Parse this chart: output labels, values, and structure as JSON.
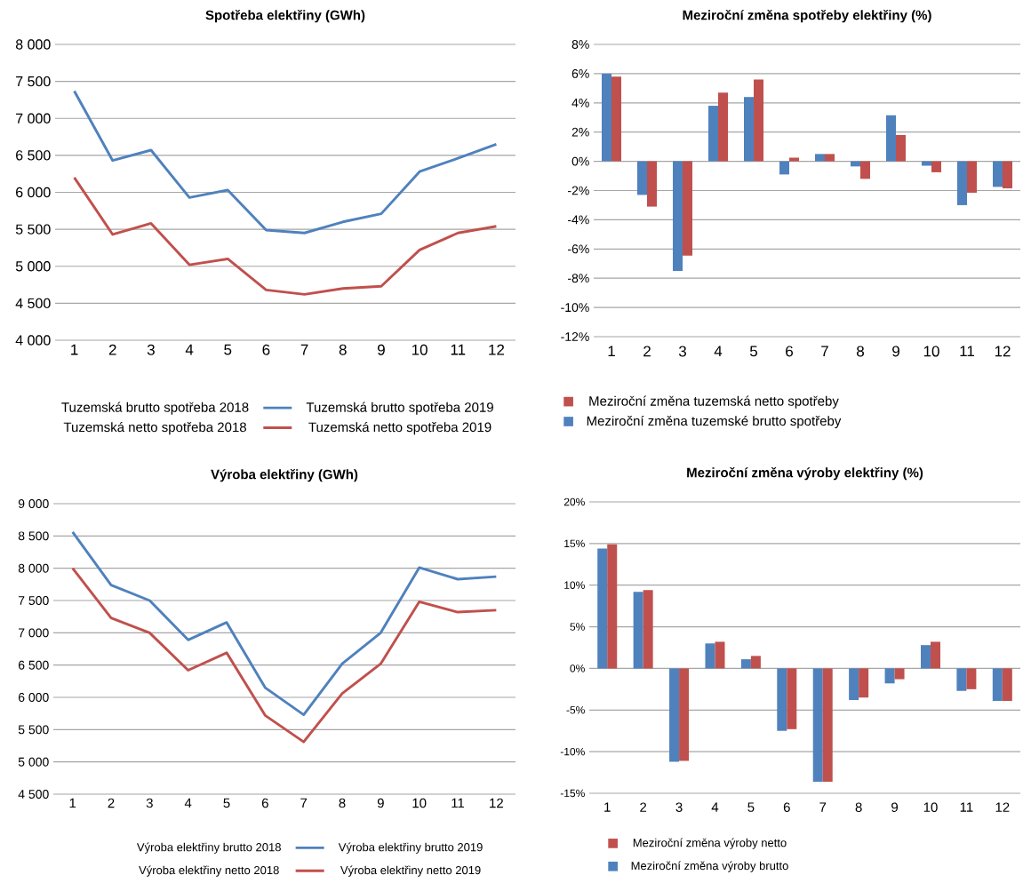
{
  "chart_data": [
    {
      "type": "line",
      "title": "Spotřeba elektřiny (GWh)",
      "categories": [
        "1",
        "2",
        "3",
        "4",
        "5",
        "6",
        "7",
        "8",
        "9",
        "10",
        "11",
        "12"
      ],
      "series": [
        {
          "name": "Tuzemská brutto spotřeba 2019",
          "color": "#4f81bd",
          "values": [
            7370,
            6430,
            6570,
            5930,
            6030,
            5490,
            5450,
            5600,
            5710,
            6280,
            6460,
            6650
          ]
        },
        {
          "name": "Tuzemská netto spotřeba 2019",
          "color": "#c0504d",
          "values": [
            6200,
            5430,
            5580,
            5020,
            5100,
            4680,
            4620,
            4700,
            4730,
            5220,
            5450,
            5540
          ]
        }
      ],
      "ylim": [
        4000,
        8000
      ],
      "yticks": [
        {
          "value": 4000,
          "label": "4 000"
        },
        {
          "value": 4500,
          "label": "4 500"
        },
        {
          "value": 5000,
          "label": "5 000"
        },
        {
          "value": 5500,
          "label": "5 500"
        },
        {
          "value": 6000,
          "label": "6 000"
        },
        {
          "value": 6500,
          "label": "6 500"
        },
        {
          "value": 7000,
          "label": "7 000"
        },
        {
          "value": 7500,
          "label": "7 500"
        },
        {
          "value": 8000,
          "label": "8 000"
        }
      ],
      "grid": "y",
      "legend": "bottom",
      "annotations": [
        "Tuzemská brutto spotřeba 2018",
        "Tuzemská netto spotřeba 2018"
      ]
    },
    {
      "type": "bar",
      "title": "Meziroční změna spotřeby elektřiny (%)",
      "categories": [
        "1",
        "2",
        "3",
        "4",
        "5",
        "6",
        "7",
        "8",
        "9",
        "10",
        "11",
        "12"
      ],
      "series": [
        {
          "name": "Meziroční změna tuzemské brutto spotřeby",
          "color": "#4f81bd",
          "values": [
            6.0,
            -2.3,
            -7.5,
            3.8,
            4.4,
            -0.9,
            0.5,
            -0.35,
            3.15,
            -0.3,
            -3.0,
            -1.75
          ]
        },
        {
          "name": "Meziroční změna tuzemská netto spotřeby",
          "color": "#c0504d",
          "values": [
            5.8,
            -3.1,
            -6.45,
            4.7,
            5.6,
            0.25,
            0.5,
            -1.2,
            1.8,
            -0.75,
            -2.15,
            -1.85
          ]
        }
      ],
      "ylim": [
        -12,
        8
      ],
      "yticks": [
        {
          "value": -12,
          "label": "-12%"
        },
        {
          "value": -10,
          "label": "-10%"
        },
        {
          "value": -8,
          "label": "-8%"
        },
        {
          "value": -6,
          "label": "-6%"
        },
        {
          "value": -4,
          "label": "-4%"
        },
        {
          "value": -2,
          "label": "-2%"
        },
        {
          "value": 0,
          "label": "0%"
        },
        {
          "value": 2,
          "label": "2%"
        },
        {
          "value": 4,
          "label": "4%"
        },
        {
          "value": 6,
          "label": "6%"
        },
        {
          "value": 8,
          "label": "8%"
        }
      ],
      "grid": "y",
      "legend": "bottom"
    },
    {
      "type": "line",
      "title": "Výroba elektřiny (GWh)",
      "categories": [
        "1",
        "2",
        "3",
        "4",
        "5",
        "6",
        "7",
        "8",
        "9",
        "10",
        "11",
        "12"
      ],
      "series": [
        {
          "name": "Výroba elektřiny brutto 2019",
          "color": "#4f81bd",
          "values": [
            8560,
            7740,
            7500,
            6890,
            7160,
            6150,
            5730,
            6520,
            7000,
            8010,
            7830,
            7870
          ]
        },
        {
          "name": "Výroba elektřiny netto 2019",
          "color": "#c0504d",
          "values": [
            8000,
            7230,
            7000,
            6420,
            6690,
            5720,
            5310,
            6060,
            6520,
            7480,
            7320,
            7350
          ]
        }
      ],
      "ylim": [
        4500,
        9000
      ],
      "yticks": [
        {
          "value": 4500,
          "label": "4 500"
        },
        {
          "value": 5000,
          "label": "5 000"
        },
        {
          "value": 5500,
          "label": "5 500"
        },
        {
          "value": 6000,
          "label": "6 000"
        },
        {
          "value": 6500,
          "label": "6 500"
        },
        {
          "value": 7000,
          "label": "7 000"
        },
        {
          "value": 7500,
          "label": "7 500"
        },
        {
          "value": 8000,
          "label": "8 000"
        },
        {
          "value": 8500,
          "label": "8 500"
        },
        {
          "value": 9000,
          "label": "9 000"
        }
      ],
      "grid": "y",
      "legend": "bottom",
      "annotations": [
        "Výroba elektřiny brutto 2018",
        "Výroba elektřiny netto 2018"
      ]
    },
    {
      "type": "bar",
      "title": "Meziroční změna výroby elektřiny (%)",
      "categories": [
        "1",
        "2",
        "3",
        "4",
        "5",
        "6",
        "7",
        "8",
        "9",
        "10",
        "11",
        "12"
      ],
      "series": [
        {
          "name": "Meziroční změna výroby brutto",
          "color": "#4f81bd",
          "values": [
            14.4,
            9.2,
            -11.2,
            3.0,
            1.1,
            -7.5,
            -13.6,
            -3.8,
            -1.8,
            2.8,
            -2.7,
            -3.9
          ]
        },
        {
          "name": "Meziroční změna výroby netto",
          "color": "#c0504d",
          "values": [
            14.9,
            9.4,
            -11.1,
            3.2,
            1.5,
            -7.3,
            -13.6,
            -3.5,
            -1.3,
            3.2,
            -2.5,
            -3.9
          ]
        }
      ],
      "ylim": [
        -15,
        20
      ],
      "yticks": [
        {
          "value": -15,
          "label": "-15%"
        },
        {
          "value": -10,
          "label": "-10%"
        },
        {
          "value": -5,
          "label": "-5%"
        },
        {
          "value": 0,
          "label": "0%"
        },
        {
          "value": 5,
          "label": "5%"
        },
        {
          "value": 10,
          "label": "10%"
        },
        {
          "value": 15,
          "label": "15%"
        },
        {
          "value": 20,
          "label": "20%"
        }
      ],
      "grid": "y",
      "legend": "bottom"
    }
  ]
}
